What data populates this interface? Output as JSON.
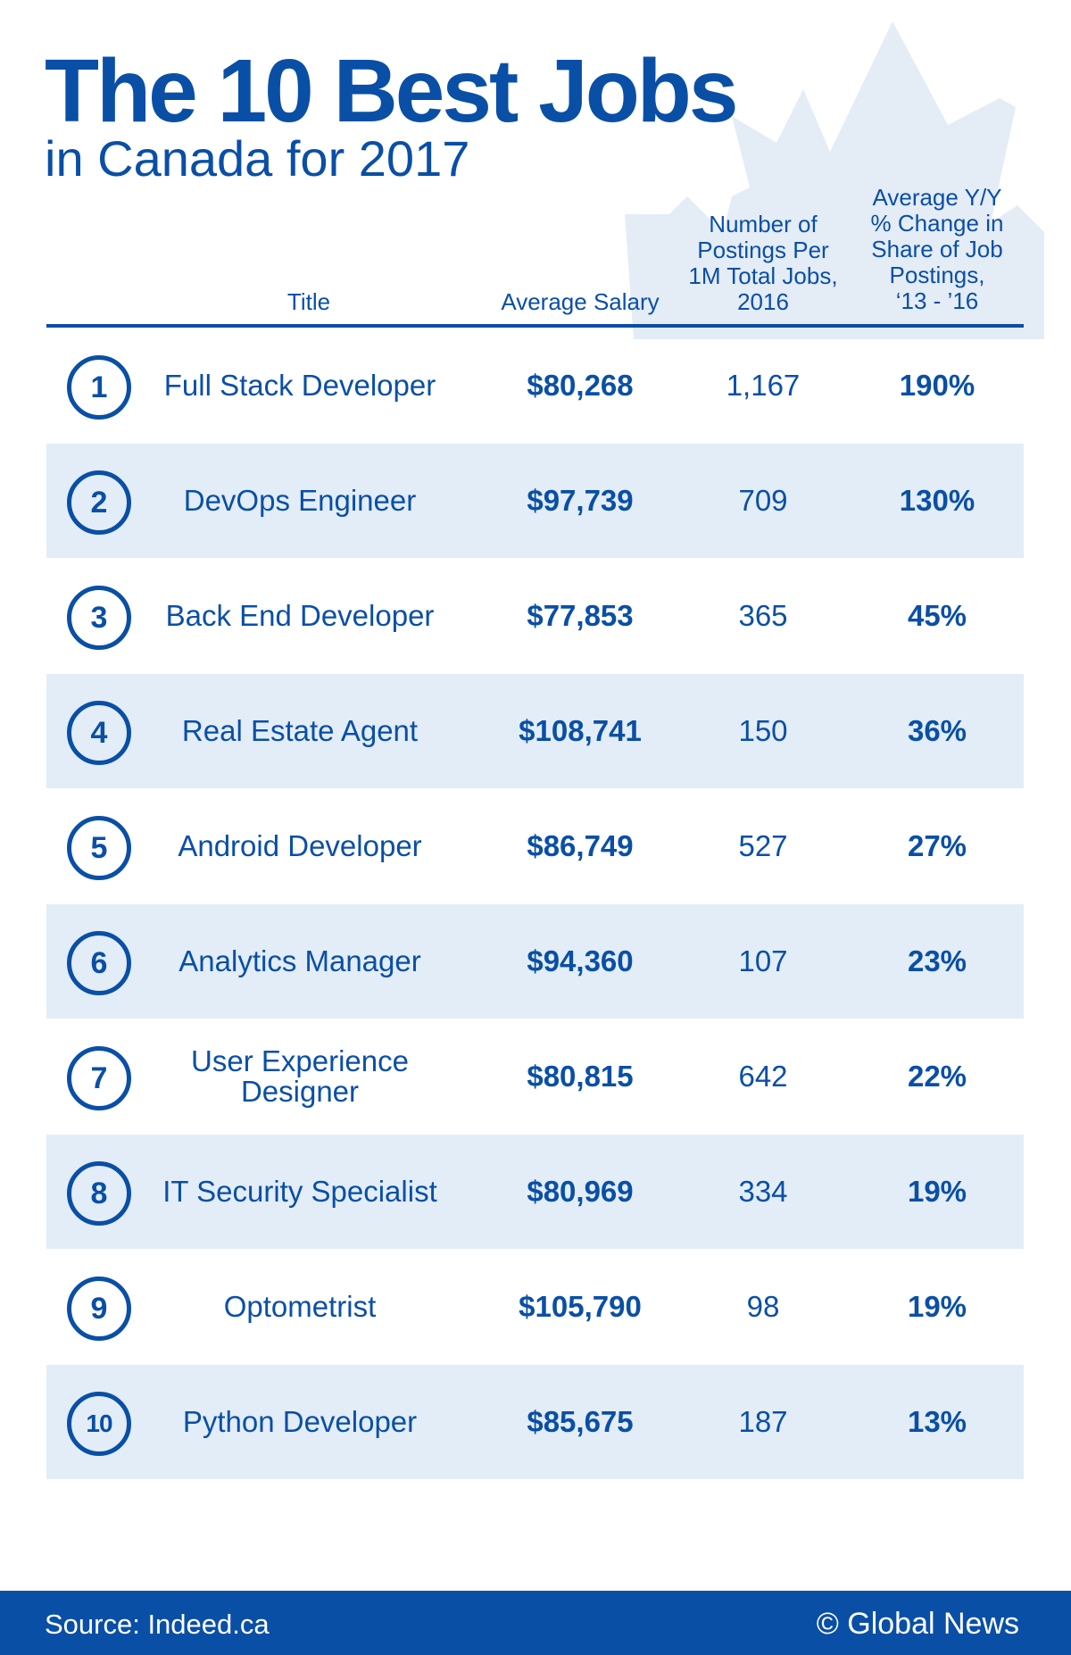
{
  "header": {
    "title": "The 10 Best Jobs",
    "subtitle": "in Canada for 2017"
  },
  "columns": {
    "title": "Title",
    "salary": "Average Salary",
    "postings_lines": [
      "Number of",
      "Postings Per",
      "1M Total Jobs,",
      "2016"
    ],
    "change_lines": [
      "Average Y/Y",
      "% Change in",
      "Share of Job",
      "Postings,",
      "‘13 - ’16"
    ]
  },
  "rows": [
    {
      "rank": "1",
      "title_lines": [
        "Full Stack Developer"
      ],
      "salary": "$80,268",
      "postings": "1,167",
      "change": "190%"
    },
    {
      "rank": "2",
      "title_lines": [
        "DevOps Engineer"
      ],
      "salary": "$97,739",
      "postings": "709",
      "change": "130%"
    },
    {
      "rank": "3",
      "title_lines": [
        "Back End Developer"
      ],
      "salary": "$77,853",
      "postings": "365",
      "change": "45%"
    },
    {
      "rank": "4",
      "title_lines": [
        "Real Estate Agent"
      ],
      "salary": "$108,741",
      "postings": "150",
      "change": "36%"
    },
    {
      "rank": "5",
      "title_lines": [
        "Android Developer"
      ],
      "salary": "$86,749",
      "postings": "527",
      "change": "27%"
    },
    {
      "rank": "6",
      "title_lines": [
        "Analytics Manager"
      ],
      "salary": "$94,360",
      "postings": "107",
      "change": "23%"
    },
    {
      "rank": "7",
      "title_lines": [
        "User Experience",
        "Designer"
      ],
      "salary": "$80,815",
      "postings": "642",
      "change": "22%"
    },
    {
      "rank": "8",
      "title_lines": [
        "IT Security Specialist"
      ],
      "salary": "$80,969",
      "postings": "334",
      "change": "19%"
    },
    {
      "rank": "9",
      "title_lines": [
        "Optometrist"
      ],
      "salary": "$105,790",
      "postings": "98",
      "change": "19%"
    },
    {
      "rank": "10",
      "title_lines": [
        "Python Developer"
      ],
      "salary": "$85,675",
      "postings": "187",
      "change": "13%"
    }
  ],
  "footer": {
    "source": "Source: Indeed.ca",
    "brand": "© Global News"
  },
  "colors": {
    "primary": "#0a4fa6",
    "row_shade": "#e3edf7",
    "leaf": "#e4ecf6"
  },
  "decoration": {
    "background_icon": "maple-leaf-icon"
  }
}
